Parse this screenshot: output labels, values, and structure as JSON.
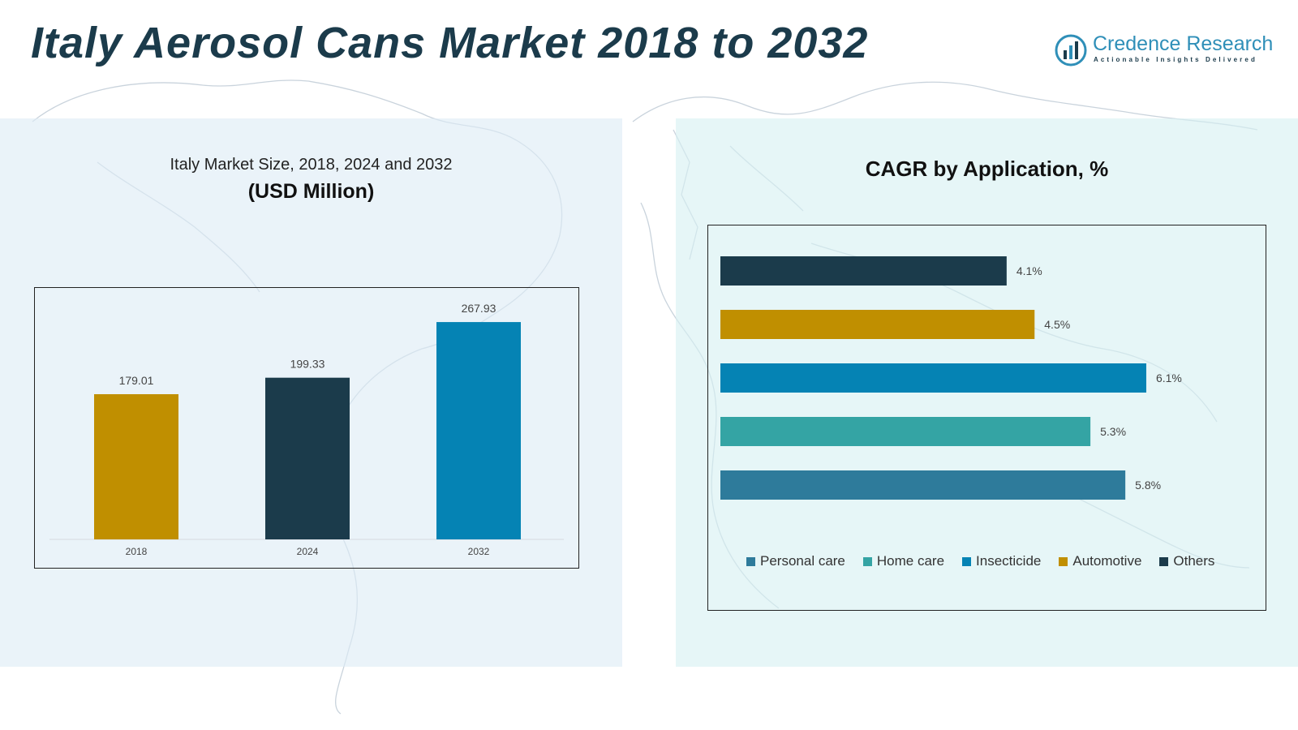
{
  "header": {
    "title": "Italy Aerosol Cans Market 2018 to 2032",
    "logo_brand": "Credence Research",
    "logo_tagline": "Actionable Insights Delivered"
  },
  "left_panel": {
    "subtitle": "Italy Market Size, 2018, 2024 and 2032",
    "unit": "(USD Million)"
  },
  "right_panel": {
    "title": "CAGR by Application, %"
  },
  "colors": {
    "navy": "#1b3b4b",
    "gold": "#c08f00",
    "blue": "#0583b4",
    "teal": "#34a4a4",
    "steel": "#2e7b9b"
  },
  "chart_data": [
    {
      "type": "bar",
      "categories": [
        "2018",
        "2024",
        "2032"
      ],
      "values": [
        179.01,
        199.33,
        267.93
      ],
      "value_labels": [
        "179.01",
        "199.33",
        "267.93"
      ],
      "bar_colors": [
        "#c08f00",
        "#1b3b4b",
        "#0583b4"
      ],
      "ylim": [
        0,
        290
      ],
      "grid": false,
      "legend": "none"
    },
    {
      "type": "bar",
      "orientation": "horizontal",
      "categories": [
        "Others",
        "Automotive",
        "Insecticide",
        "Home care",
        "Personal care"
      ],
      "values": [
        4.1,
        4.5,
        6.1,
        5.3,
        5.8
      ],
      "value_labels": [
        "4.1%",
        "4.5%",
        "6.1%",
        "5.3%",
        "5.8%"
      ],
      "bar_colors": [
        "#1b3b4b",
        "#c08f00",
        "#0583b4",
        "#34a4a4",
        "#2e7b9b"
      ],
      "xlim": [
        0,
        6.6
      ],
      "grid": false,
      "legend": "bottom",
      "legend_entries": [
        {
          "label": "Personal care",
          "color": "#2e7b9b"
        },
        {
          "label": "Home care",
          "color": "#34a4a4"
        },
        {
          "label": "Insecticide",
          "color": "#0583b4"
        },
        {
          "label": "Automotive",
          "color": "#c08f00"
        },
        {
          "label": "Others",
          "color": "#1b3b4b"
        }
      ]
    }
  ]
}
